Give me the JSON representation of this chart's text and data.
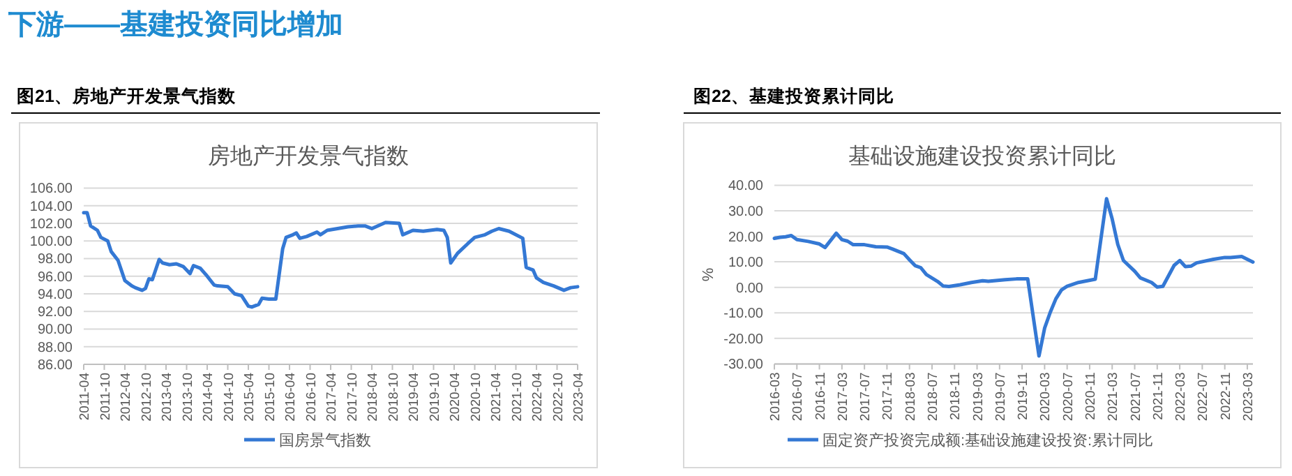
{
  "chart_data": [
    {
      "type": "line",
      "title": "房地产开发景气指数",
      "annotations": [
        "下游——基建投资同比增加",
        "图21、房地产开发景气指数"
      ],
      "x": [
        "2011-04",
        "2011-05",
        "2011-06",
        "2011-08",
        "2011-09",
        "2011-11",
        "2011-12",
        "2012-02",
        "2012-04",
        "2012-06",
        "2012-07",
        "2012-09",
        "2012-10",
        "2012-11",
        "2012-12",
        "2013-02",
        "2013-03",
        "2013-05",
        "2013-07",
        "2013-09",
        "2013-11",
        "2013-12",
        "2014-02",
        "2014-04",
        "2014-06",
        "2014-07",
        "2014-10",
        "2014-12",
        "2015-02",
        "2015-04",
        "2015-05",
        "2015-07",
        "2015-08",
        "2015-10",
        "2015-12",
        "2016-02",
        "2016-03",
        "2016-05",
        "2016-06",
        "2016-07",
        "2016-09",
        "2016-12",
        "2017-01",
        "2017-03",
        "2017-06",
        "2017-09",
        "2017-12",
        "2018-02",
        "2018-04",
        "2018-08",
        "2018-12",
        "2019-01",
        "2019-04",
        "2019-07",
        "2019-11",
        "2020-01",
        "2020-02",
        "2020-03",
        "2020-05",
        "2020-08",
        "2020-10",
        "2021-01",
        "2021-03",
        "2021-05",
        "2021-08",
        "2021-12",
        "2022-01",
        "2022-03",
        "2022-04",
        "2022-06",
        "2022-09",
        "2022-12",
        "2023-02",
        "2023-04"
      ],
      "series": [
        {
          "name": "国房景气指数",
          "color": "#3478d4",
          "values": [
            103.2,
            103.2,
            101.7,
            101.2,
            100.4,
            100.0,
            98.8,
            97.8,
            95.5,
            94.9,
            94.7,
            94.4,
            94.6,
            95.7,
            95.6,
            97.9,
            97.5,
            97.3,
            97.4,
            97.1,
            96.3,
            97.2,
            96.9,
            96.0,
            95.0,
            94.9,
            94.8,
            94.0,
            93.8,
            92.6,
            92.5,
            92.8,
            93.5,
            93.4,
            93.4,
            99.1,
            100.4,
            100.7,
            100.9,
            100.3,
            100.5,
            101.0,
            100.7,
            101.2,
            101.4,
            101.6,
            101.7,
            101.7,
            101.4,
            102.1,
            102.0,
            100.7,
            101.2,
            101.1,
            101.3,
            101.2,
            100.4,
            97.5,
            98.6,
            99.7,
            100.4,
            100.7,
            101.1,
            101.4,
            101.1,
            100.3,
            97.0,
            96.7,
            95.8,
            95.3,
            94.9,
            94.4,
            94.7,
            94.8
          ]
        }
      ],
      "xlim": [
        "2011-04",
        "2023-04"
      ],
      "xticks": [
        "2011-04",
        "2011-10",
        "2012-04",
        "2012-10",
        "2013-04",
        "2013-10",
        "2014-04",
        "2014-10",
        "2015-04",
        "2015-10",
        "2016-04",
        "2016-10",
        "2017-04",
        "2017-10",
        "2018-04",
        "2018-10",
        "2019-04",
        "2019-10",
        "2020-04",
        "2020-10",
        "2021-04",
        "2021-10",
        "2022-04",
        "2022-10",
        "2023-04"
      ],
      "ylim": [
        86,
        106
      ],
      "yticks": [
        {
          "value": 86,
          "label": "86.00"
        },
        {
          "value": 88,
          "label": "88.00"
        },
        {
          "value": 90,
          "label": "90.00"
        },
        {
          "value": 92,
          "label": "92.00"
        },
        {
          "value": 94,
          "label": "94.00"
        },
        {
          "value": 96,
          "label": "96.00"
        },
        {
          "value": 98,
          "label": "98.00"
        },
        {
          "value": 100,
          "label": "100.00"
        },
        {
          "value": 102,
          "label": "102.00"
        },
        {
          "value": 104,
          "label": "104.00"
        },
        {
          "value": 106,
          "label": "106.00"
        }
      ],
      "grid": "y",
      "legend": "bottom"
    },
    {
      "type": "line",
      "title": "基础设施建设投资累计同比",
      "ylabel": "%",
      "annotations": [
        "图22、基建投资累计同比"
      ],
      "x": [
        "2016-03",
        "2016-04",
        "2016-05",
        "2016-06",
        "2016-07",
        "2016-09",
        "2016-11",
        "2016-12",
        "2017-02",
        "2017-03",
        "2017-04",
        "2017-05",
        "2017-07",
        "2017-09",
        "2017-11",
        "2017-12",
        "2018-02",
        "2018-03",
        "2018-04",
        "2018-05",
        "2018-06",
        "2018-08",
        "2018-09",
        "2018-10",
        "2018-12",
        "2019-02",
        "2019-04",
        "2019-05",
        "2019-08",
        "2019-10",
        "2019-12",
        "2020-02",
        "2020-03",
        "2020-04",
        "2020-05",
        "2020-06",
        "2020-07",
        "2020-09",
        "2020-12",
        "2021-02",
        "2021-03",
        "2021-04",
        "2021-05",
        "2021-07",
        "2021-08",
        "2021-10",
        "2021-11",
        "2021-12",
        "2022-02",
        "2022-03",
        "2022-04",
        "2022-05",
        "2022-06",
        "2022-09",
        "2022-11",
        "2022-12",
        "2023-02",
        "2023-04"
      ],
      "series": [
        {
          "name": "固定资产投资完成额:基础设施建设投资:累计同比",
          "color": "#3478d4",
          "values": [
            19.2,
            19.6,
            19.8,
            20.3,
            18.7,
            18.0,
            17.0,
            15.6,
            21.2,
            18.7,
            18.1,
            16.7,
            16.7,
            15.9,
            15.8,
            15.0,
            13.2,
            10.8,
            8.5,
            7.7,
            5.0,
            2.3,
            0.5,
            0.3,
            1.0,
            1.9,
            2.6,
            2.4,
            3.0,
            3.3,
            3.3,
            -26.9,
            -16.0,
            -9.8,
            -4.5,
            -1.0,
            0.4,
            1.9,
            3.2,
            34.7,
            26.8,
            16.8,
            10.5,
            6.3,
            3.7,
            1.9,
            0.1,
            0.4,
            8.6,
            10.5,
            8.1,
            8.3,
            9.6,
            11.0,
            11.7,
            11.7,
            12.1,
            9.9
          ]
        }
      ],
      "xlim": [
        "2016-03",
        "2023-04"
      ],
      "xticks": [
        "2016-03",
        "2016-07",
        "2016-11",
        "2017-03",
        "2017-07",
        "2017-11",
        "2018-03",
        "2018-07",
        "2018-11",
        "2019-03",
        "2019-07",
        "2019-11",
        "2020-03",
        "2020-07",
        "2020-11",
        "2021-03",
        "2021-07",
        "2021-11",
        "2022-03",
        "2022-07",
        "2022-11",
        "2023-03"
      ],
      "ylim": [
        -30,
        40
      ],
      "yticks": [
        {
          "value": -30,
          "label": "-30.00"
        },
        {
          "value": -20,
          "label": "-20.00"
        },
        {
          "value": -10,
          "label": "-10.00"
        },
        {
          "value": 0,
          "label": "0.00"
        },
        {
          "value": 10,
          "label": "10.00"
        },
        {
          "value": 20,
          "label": "20.00"
        },
        {
          "value": 30,
          "label": "30.00"
        },
        {
          "value": 40,
          "label": "40.00"
        }
      ],
      "grid": "y",
      "legend": "bottom"
    }
  ]
}
